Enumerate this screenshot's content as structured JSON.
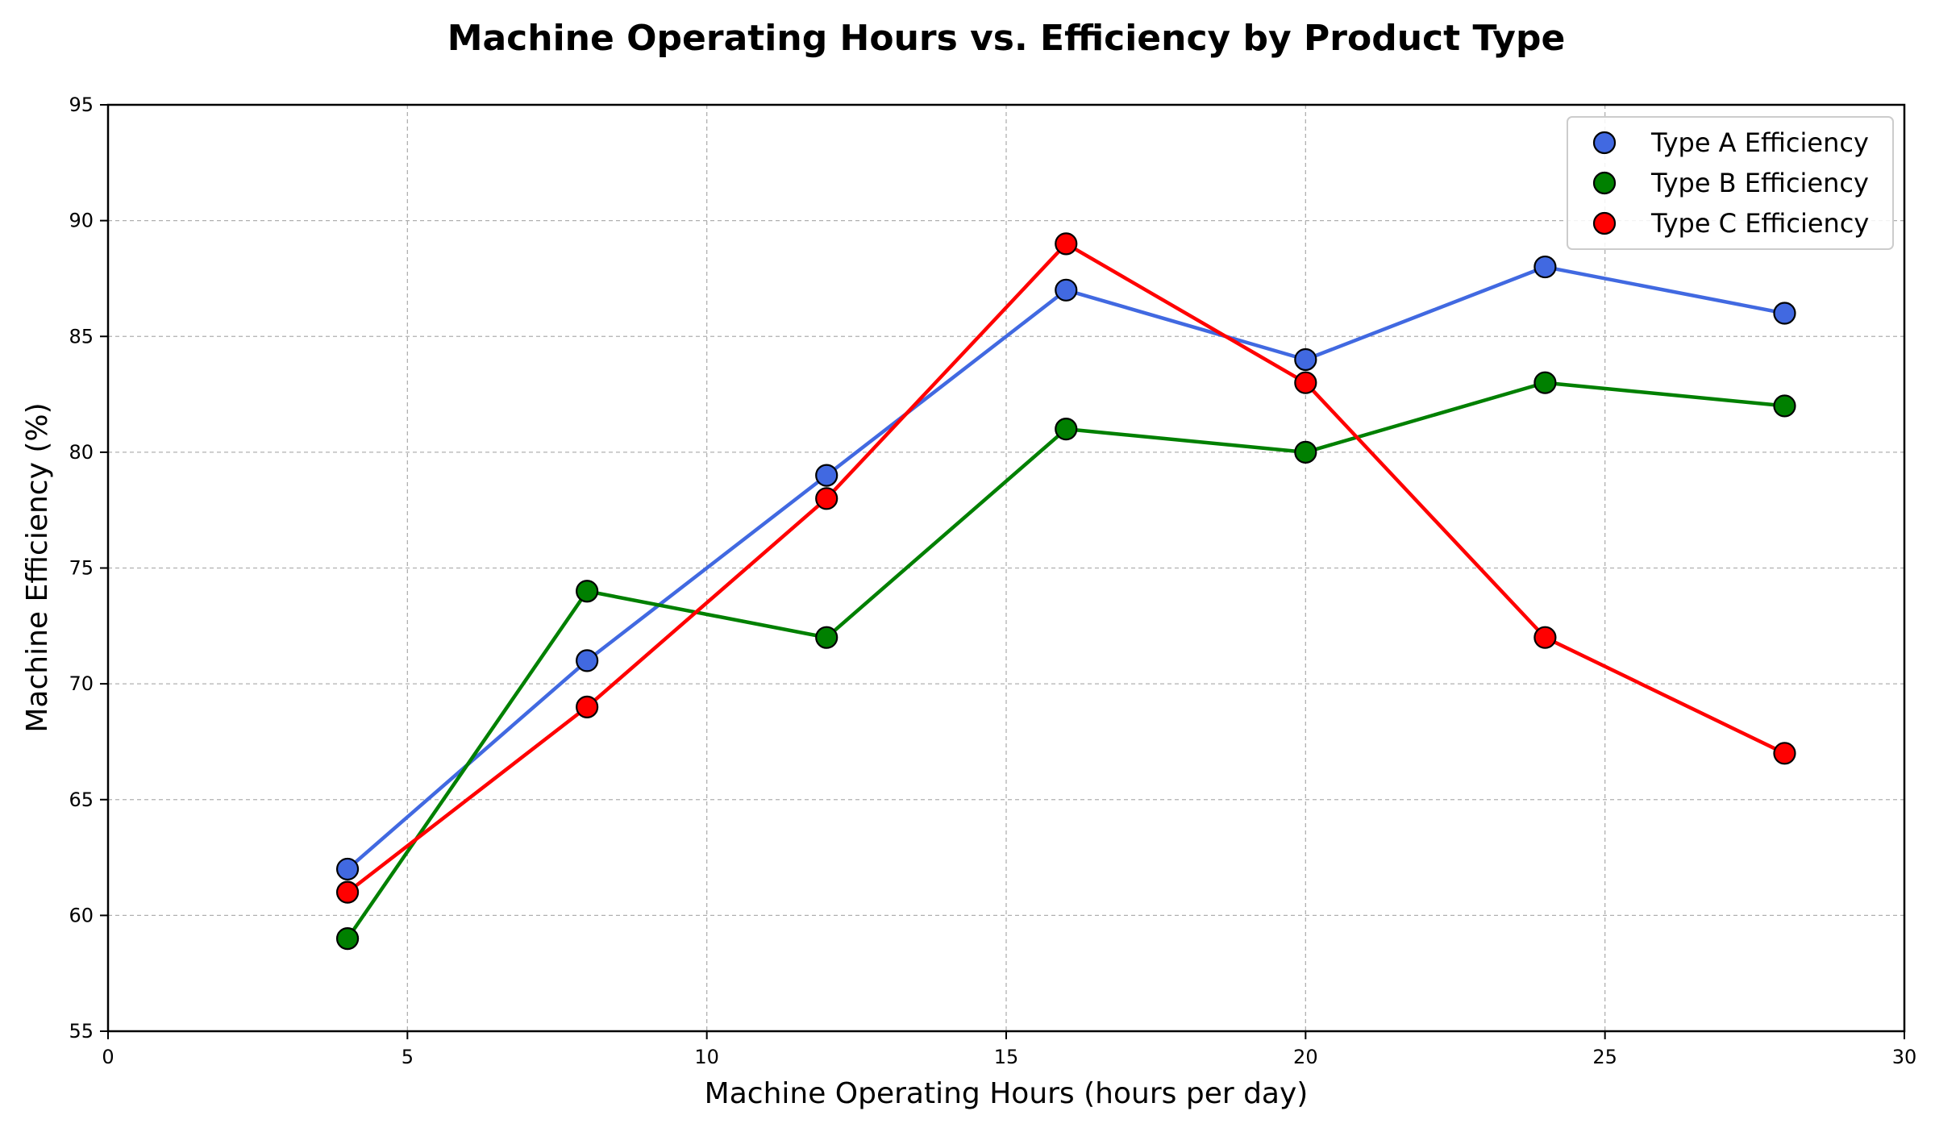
{
  "chart_data": {
    "type": "line",
    "title": "Machine Operating Hours vs. Efficiency by Product Type",
    "xlabel": "Machine Operating Hours (hours per day)",
    "ylabel": "Machine Efficiency (%)",
    "xlim": [
      0,
      30
    ],
    "ylim": [
      55,
      95
    ],
    "xticks": [
      0,
      5,
      10,
      15,
      20,
      25,
      30
    ],
    "yticks": [
      55,
      60,
      65,
      70,
      75,
      80,
      85,
      90,
      95
    ],
    "grid": true,
    "legend_position": "top-right",
    "x": [
      4,
      8,
      12,
      16,
      20,
      24,
      28
    ],
    "series": [
      {
        "name": "Type A Efficiency",
        "color": "#4169E1",
        "values": [
          62,
          71,
          79,
          87,
          84,
          88,
          86
        ]
      },
      {
        "name": "Type B Efficiency",
        "color": "#008000",
        "values": [
          59,
          74,
          72,
          81,
          80,
          83,
          82
        ]
      },
      {
        "name": "Type C Efficiency",
        "color": "#FF0000",
        "values": [
          61,
          69,
          78,
          89,
          83,
          72,
          67
        ]
      }
    ]
  }
}
